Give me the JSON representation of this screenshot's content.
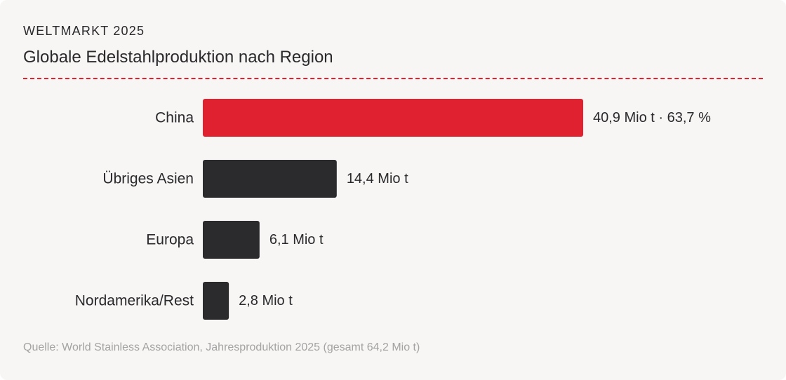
{
  "header": {
    "kicker": "WELTMARKT 2025",
    "title": "Globale Edelstahlproduktion nach Region"
  },
  "chart_data": {
    "type": "bar",
    "orientation": "horizontal",
    "categories": [
      "China",
      "Übriges Asien",
      "Europa",
      "Nordamerika/Rest"
    ],
    "values": [
      40.9,
      14.4,
      6.1,
      2.8
    ],
    "value_labels": [
      "40,9 Mio t · 63,7 %",
      "14,4 Mio t",
      "6,1 Mio t",
      "2,8 Mio t"
    ],
    "unit": "Mio t",
    "xlim": [
      0,
      40.9
    ],
    "grid": false,
    "highlight_color": "#e0212f",
    "default_color": "#2b2b2e"
  },
  "footer": {
    "source": "Quelle: World Stainless Association, Jahresproduktion 2025 (gesamt 64,2 Mio t)"
  }
}
